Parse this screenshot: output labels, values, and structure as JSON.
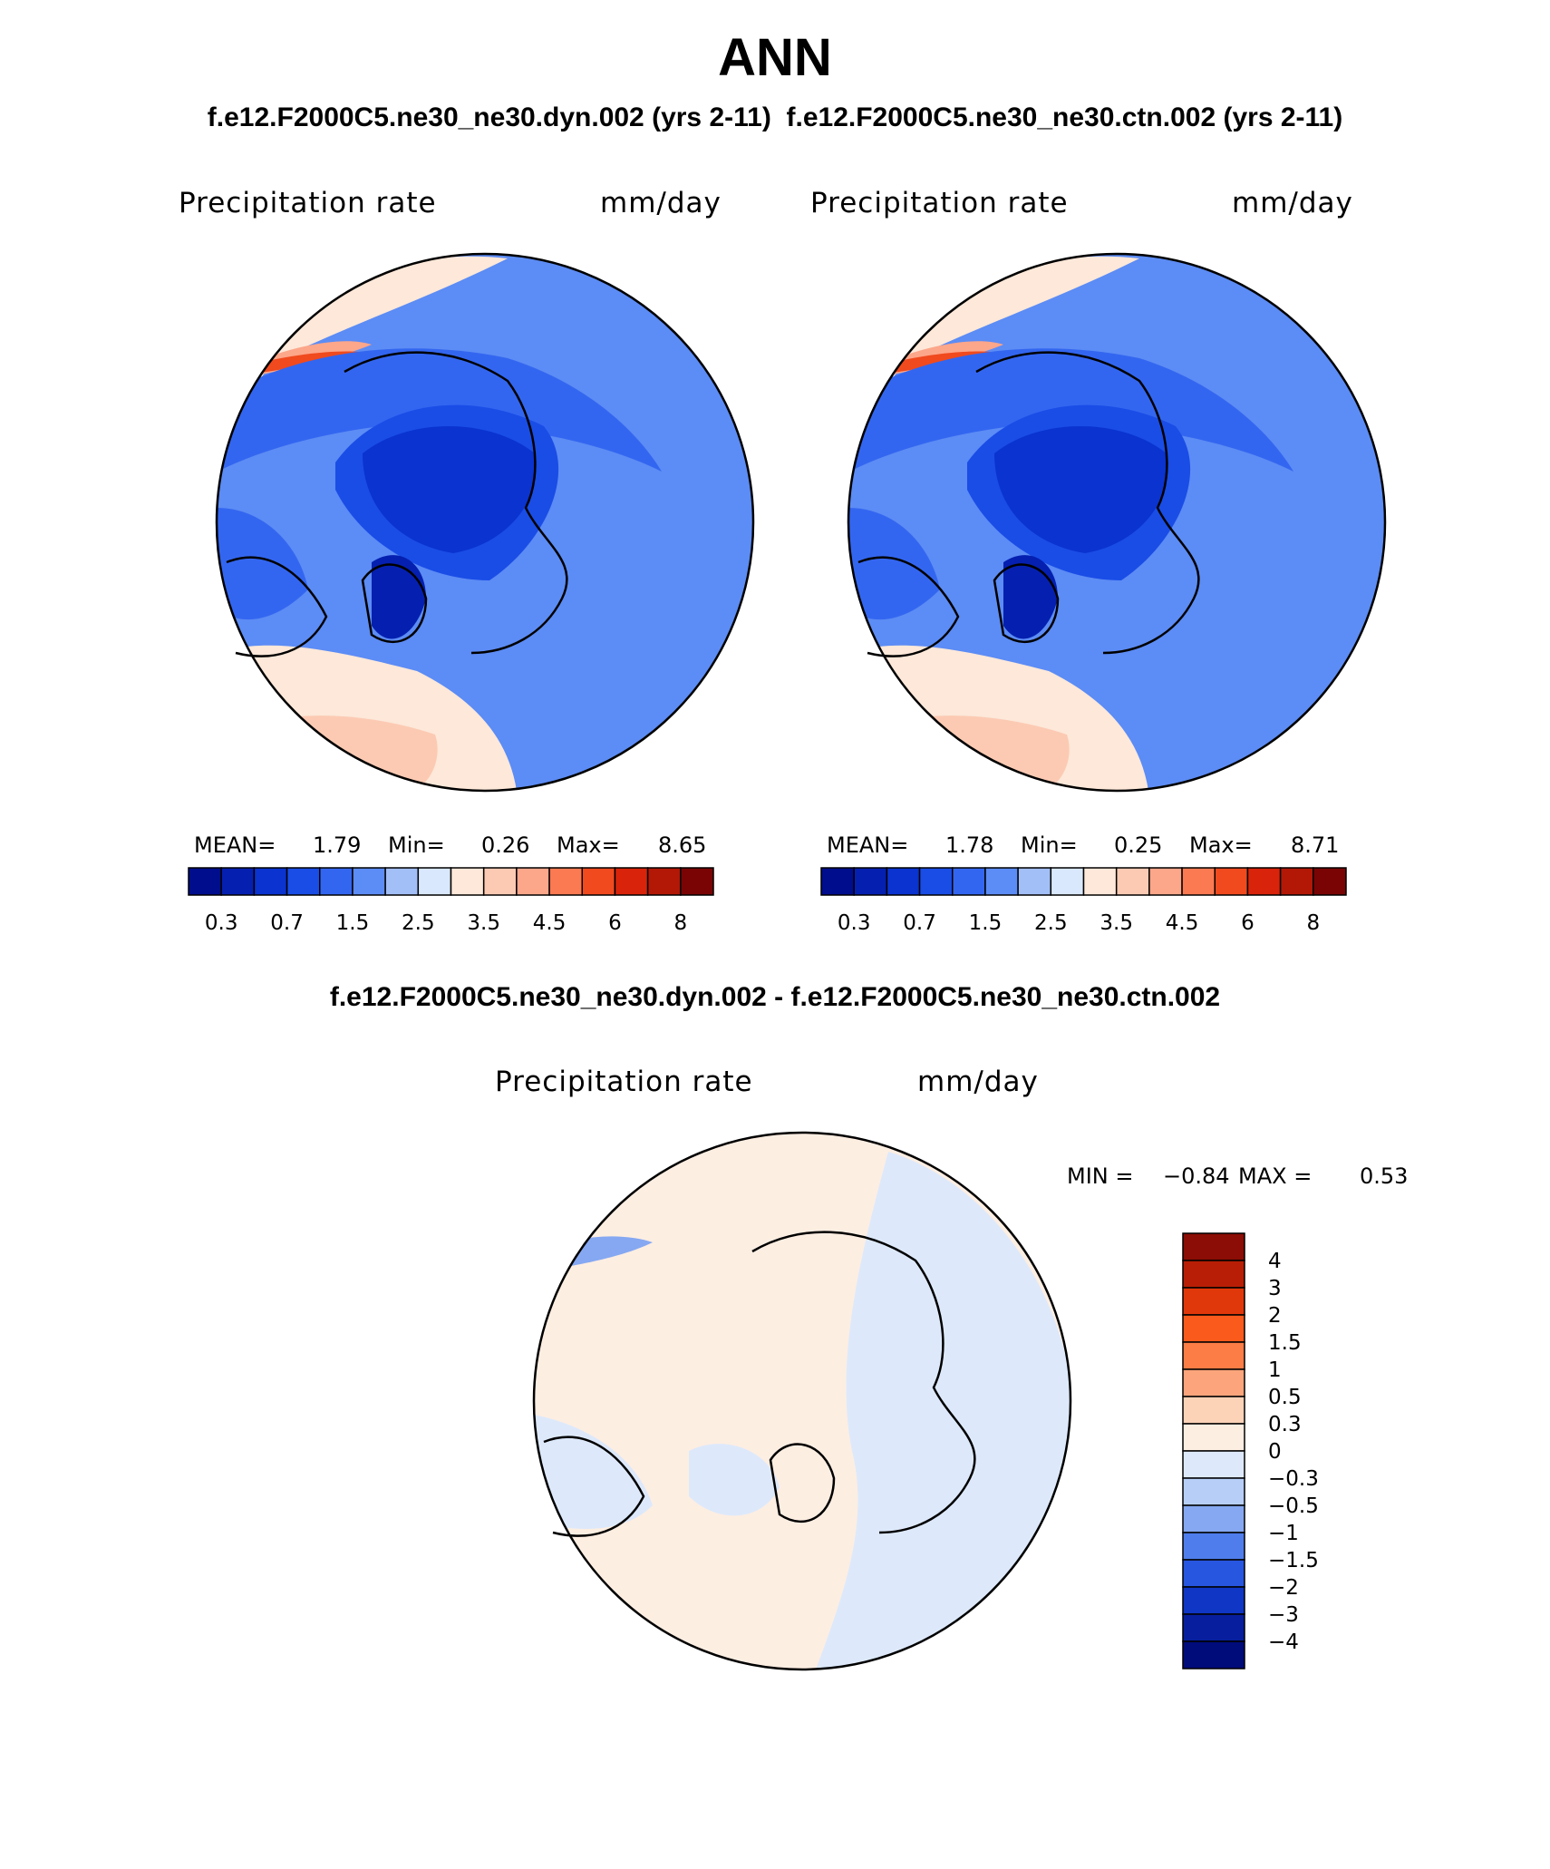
{
  "page": {
    "title": "ANN",
    "subtitle_left": "f.e12.F2000C5.ne30_ne30.dyn.002 (yrs 2-11)",
    "subtitle_right": "f.e12.F2000C5.ne30_ne30.ctn.002 (yrs 2-11)",
    "diff_title": "f.e12.F2000C5.ne30_ne30.dyn.002 - f.e12.F2000C5.ne30_ne30.ctn.002"
  },
  "chart_data": [
    {
      "type": "heatmap",
      "projection": "north-polar-stereographic",
      "case": "f.e12.F2000C5.ne30_ne30.dyn.002 (yrs 2-11)",
      "field_label": "Precipitation rate",
      "units": "mm/day",
      "stats": {
        "mean_label": "MEAN=",
        "mean": "1.79",
        "min_label": "Min=",
        "min": "0.26",
        "max_label": "Max=",
        "max": "8.65"
      },
      "colorbar_ticks": [
        "0.3",
        "0.7",
        "1.5",
        "2.5",
        "3.5",
        "4.5",
        "6",
        "8"
      ],
      "colorbar_colors": [
        "#000d8c",
        "#0520b0",
        "#0a33cf",
        "#1a4de6",
        "#3366f0",
        "#5c8cf5",
        "#a3bff7",
        "#d9e8fc",
        "#fde8d9",
        "#fccab3",
        "#fca68a",
        "#fb7a52",
        "#f04a1e",
        "#d9230a",
        "#b31807",
        "#7a0404"
      ]
    },
    {
      "type": "heatmap",
      "projection": "north-polar-stereographic",
      "case": "f.e12.F2000C5.ne30_ne30.ctn.002 (yrs 2-11)",
      "field_label": "Precipitation rate",
      "units": "mm/day",
      "stats": {
        "mean_label": "MEAN=",
        "mean": "1.78",
        "min_label": "Min=",
        "min": "0.25",
        "max_label": "Max=",
        "max": "8.71"
      },
      "colorbar_ticks": [
        "0.3",
        "0.7",
        "1.5",
        "2.5",
        "3.5",
        "4.5",
        "6",
        "8"
      ],
      "colorbar_colors": [
        "#000d8c",
        "#0520b0",
        "#0a33cf",
        "#1a4de6",
        "#3366f0",
        "#5c8cf5",
        "#a3bff7",
        "#d9e8fc",
        "#fde8d9",
        "#fccab3",
        "#fca68a",
        "#fb7a52",
        "#f04a1e",
        "#d9230a",
        "#b31807",
        "#7a0404"
      ]
    },
    {
      "type": "heatmap",
      "projection": "north-polar-stereographic",
      "case": "f.e12.F2000C5.ne30_ne30.dyn.002 - f.e12.F2000C5.ne30_ne30.ctn.002",
      "field_label": "Precipitation rate",
      "units": "mm/day",
      "stats": {
        "min_label": "MIN =",
        "min": "−0.84",
        "max_label": "MAX =",
        "max": "0.53"
      },
      "colorbar_ticks": [
        "4",
        "3",
        "2",
        "1.5",
        "1",
        "0.5",
        "0.3",
        "0",
        "−0.3",
        "−0.5",
        "−1",
        "−1.5",
        "−2",
        "−3",
        "−4"
      ],
      "colorbar_colors": [
        "#8b0d05",
        "#b81e05",
        "#e0380a",
        "#fa5a1c",
        "#fc7d46",
        "#fca57c",
        "#fdd3b8",
        "#fdeee2",
        "#dde9fb",
        "#b7cff7",
        "#86a8f2",
        "#4f7eec",
        "#2756e0",
        "#0f36c4",
        "#071f9e",
        "#000c7a"
      ]
    }
  ]
}
